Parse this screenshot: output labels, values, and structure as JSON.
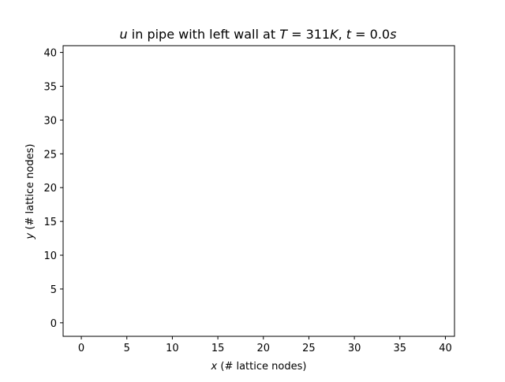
{
  "chart_data": {
    "type": "scatter",
    "title": {
      "var": "u",
      "text1": " in pipe with left wall at ",
      "var2": "T",
      "text2": " = 311",
      "unit1": "K",
      "text3": ", ",
      "var3": "t",
      "text4": " = 0.0",
      "unit2": "s"
    },
    "xlabel": {
      "var": "x",
      "text": " (# lattice nodes)"
    },
    "ylabel": {
      "var": "y",
      "text": " (# lattice nodes)"
    },
    "xlim": [
      -2,
      41
    ],
    "ylim": [
      -2,
      41
    ],
    "xticks": [
      0,
      5,
      10,
      15,
      20,
      25,
      30,
      35,
      40
    ],
    "yticks": [
      0,
      5,
      10,
      15,
      20,
      25,
      30,
      35,
      40
    ],
    "grid": false,
    "series": []
  }
}
